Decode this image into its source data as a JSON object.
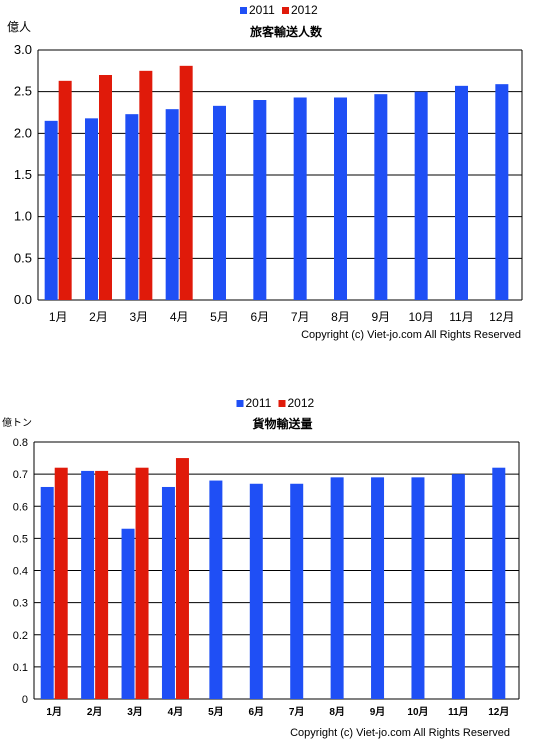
{
  "chart_data": [
    {
      "type": "bar",
      "title": "旅客輸送人数",
      "unit_label": "億人",
      "categories": [
        "1月",
        "2月",
        "3月",
        "4月",
        "5月",
        "6月",
        "7月",
        "8月",
        "9月",
        "10月",
        "11月",
        "12月"
      ],
      "series": [
        {
          "name": "2011",
          "color": "#1f4ff5",
          "values": [
            2.15,
            2.18,
            2.23,
            2.29,
            2.33,
            2.4,
            2.43,
            2.43,
            2.47,
            2.5,
            2.57,
            2.59
          ]
        },
        {
          "name": "2012",
          "color": "#e01a0a",
          "values": [
            2.63,
            2.7,
            2.75,
            2.81,
            null,
            null,
            null,
            null,
            null,
            null,
            null,
            null
          ]
        }
      ],
      "ylim": [
        0,
        3.0
      ],
      "yticks": [
        "0.0",
        "0.5",
        "1.0",
        "1.5",
        "2.0",
        "2.5",
        "3.0"
      ],
      "grid": true,
      "legend": "top-center",
      "copyright": "Copyright (c) Viet-jo.com All Rights Reserved"
    },
    {
      "type": "bar",
      "title": "貨物輸送量",
      "unit_label": "億トン",
      "categories": [
        "1月",
        "2月",
        "3月",
        "4月",
        "5月",
        "6月",
        "7月",
        "8月",
        "9月",
        "10月",
        "11月",
        "12月"
      ],
      "series": [
        {
          "name": "2011",
          "color": "#1f4ff5",
          "values": [
            0.66,
            0.71,
            0.53,
            0.66,
            0.68,
            0.67,
            0.67,
            0.69,
            0.69,
            0.69,
            0.7,
            0.72
          ]
        },
        {
          "name": "2012",
          "color": "#e01a0a",
          "values": [
            0.72,
            0.71,
            0.72,
            0.75,
            null,
            null,
            null,
            null,
            null,
            null,
            null,
            null
          ]
        }
      ],
      "ylim": [
        0,
        0.8
      ],
      "yticks": [
        "0",
        "0.1",
        "0.2",
        "0.3",
        "0.4",
        "0.5",
        "0.6",
        "0.7",
        "0.8"
      ],
      "grid": true,
      "legend": "top-center",
      "copyright": "Copyright (c) Viet-jo.com All Rights Reserved"
    }
  ]
}
